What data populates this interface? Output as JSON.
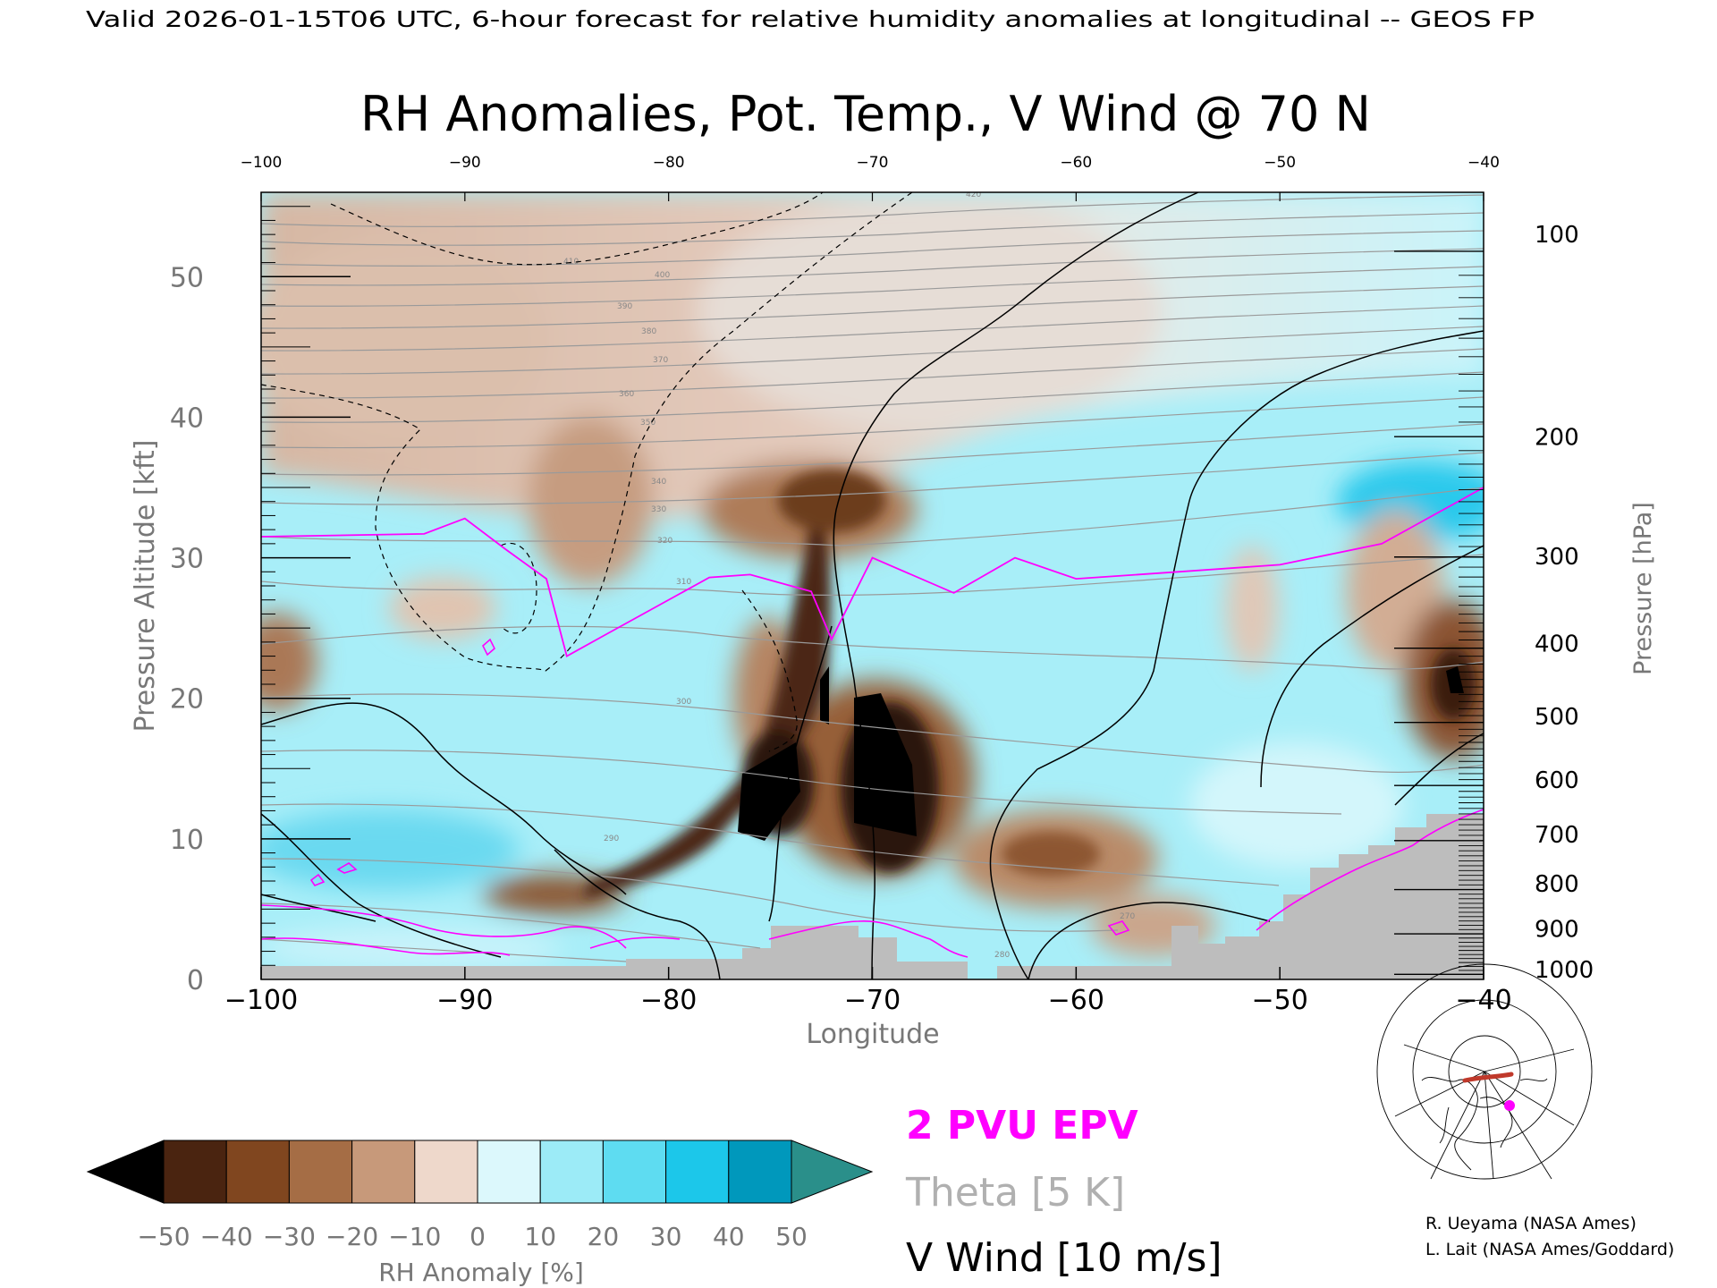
{
  "header": {
    "valid_line": "Valid 2026-01-15T06 UTC, 6-hour forecast for relative humidity anomalies at longitudinal -- GEOS FP",
    "title": "RH Anomalies, Pot. Temp., V Wind @ 70 N"
  },
  "chart_data": {
    "type": "heatmap",
    "title": "RH Anomalies, Pot. Temp., V Wind @ 70 N",
    "xlabel": "Longitude",
    "ylabel_left": "Pressure Altitude [kft]",
    "ylabel_right": "Pressure [hPa]",
    "xlim": [
      -100,
      -40
    ],
    "ylim_kft": [
      0,
      56
    ],
    "x_ticks": [
      "−100",
      "−90",
      "−80",
      "−70",
      "−60",
      "−50",
      "−40"
    ],
    "x_ticks_top": [
      "−100",
      "−90",
      "−80",
      "−70",
      "−60",
      "−50",
      "−40"
    ],
    "x_tick_values": [
      -100,
      -90,
      -80,
      -70,
      -60,
      -50,
      -40
    ],
    "y_ticks_left": [
      0,
      10,
      20,
      30,
      40,
      50
    ],
    "y_ticks_right": [
      {
        "label": "100",
        "kft": 53.0
      },
      {
        "label": "200",
        "kft": 38.6
      },
      {
        "label": "300",
        "kft": 30.1
      },
      {
        "label": "400",
        "kft": 23.9
      },
      {
        "label": "500",
        "kft": 18.7
      },
      {
        "label": "600",
        "kft": 14.2
      },
      {
        "label": "700",
        "kft": 10.3
      },
      {
        "label": "800",
        "kft": 6.8
      },
      {
        "label": "900",
        "kft": 3.6
      },
      {
        "label": "1000",
        "kft": 0.7
      }
    ],
    "rh_anomaly_features": [
      {
        "lon": -70,
        "kft": 13,
        "value": -50
      },
      {
        "lon": -74,
        "kft": 13,
        "value": -50
      },
      {
        "lon": -72,
        "kft": 33,
        "value": -40
      },
      {
        "lon": -83,
        "kft": 6,
        "value": -45
      },
      {
        "lon": -41,
        "kft": 20,
        "value": -45
      },
      {
        "lon": -99,
        "kft": 23,
        "value": -30
      },
      {
        "lon": -88,
        "kft": 42,
        "value": -15
      },
      {
        "lon": -42,
        "kft": 33,
        "value": 40
      },
      {
        "lon": -92,
        "kft": 11,
        "value": 30
      },
      {
        "lon": -60,
        "kft": 17,
        "value": 20
      }
    ],
    "epv_2pvu_line": [
      {
        "lon": -100,
        "kft": 31.5
      },
      {
        "lon": -92,
        "kft": 31.7
      },
      {
        "lon": -90,
        "kft": 32.8
      },
      {
        "lon": -88,
        "kft": 30.6
      },
      {
        "lon": -86,
        "kft": 28.5
      },
      {
        "lon": -85,
        "kft": 23.0
      },
      {
        "lon": -83,
        "kft": 24.6
      },
      {
        "lon": -78,
        "kft": 28.6
      },
      {
        "lon": -76,
        "kft": 28.8
      },
      {
        "lon": -73,
        "kft": 27.6
      },
      {
        "lon": -72,
        "kft": 24.2
      },
      {
        "lon": -70,
        "kft": 30.0
      },
      {
        "lon": -66,
        "kft": 27.5
      },
      {
        "lon": -63,
        "kft": 30.0
      },
      {
        "lon": -60,
        "kft": 28.5
      },
      {
        "lon": -55,
        "kft": 29.0
      },
      {
        "lon": -50,
        "kft": 29.5
      },
      {
        "lon": -45,
        "kft": 31.0
      },
      {
        "lon": -40,
        "kft": 35.0
      }
    ],
    "theta_labels": [
      "270",
      "280",
      "290",
      "300",
      "310",
      "320",
      "330",
      "340",
      "350",
      "360",
      "370",
      "380",
      "390",
      "400",
      "410",
      "420"
    ],
    "colorbar": {
      "label": "RH Anomaly [%]",
      "tick_labels": [
        "−50",
        "−40",
        "−30",
        "−20",
        "−10",
        "0",
        "10",
        "20",
        "30",
        "40",
        "50"
      ],
      "colors": [
        "#000000",
        "#4a2410",
        "#80461f",
        "#a56d45",
        "#c7997a",
        "#eed8cb",
        "#dcf8fc",
        "#9cebf7",
        "#5edcf1",
        "#1cc7ea",
        "#0098bc",
        "#2a8f8a"
      ]
    },
    "legend": {
      "epv": "2 PVU EPV",
      "theta": "Theta [5 K]",
      "vwind": "V Wind [10 m/s]",
      "epv_color": "#ff00ff",
      "theta_color": "#b0b0b0",
      "vwind_color": "#000000"
    }
  },
  "credits": {
    "line1": "R. Ueyama (NASA Ames)",
    "line2": "L. Lait (NASA Ames/Goddard)"
  }
}
